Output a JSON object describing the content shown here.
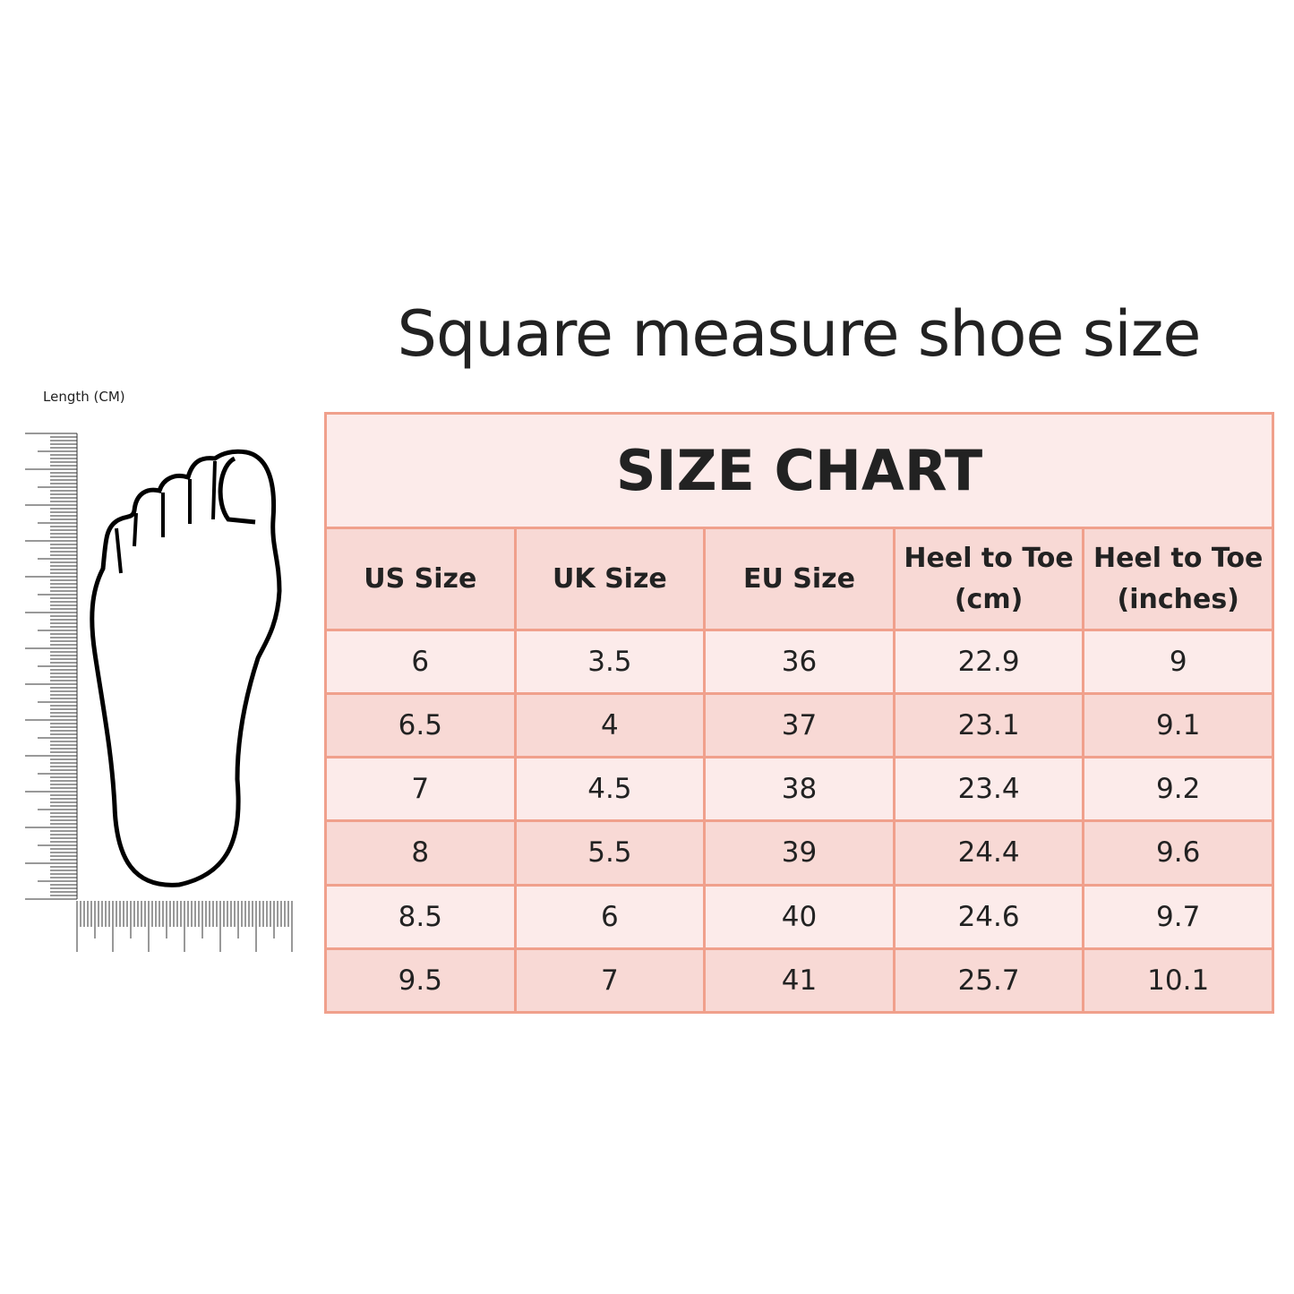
{
  "title": "Square measure shoe size",
  "ruler_label": "Length (CM)",
  "table": {
    "caption": "SIZE CHART",
    "headers": [
      "US Size",
      "UK Size",
      "EU Size",
      "Heel to Toe (cm)",
      "Heel to Toe (inches)"
    ],
    "rows": [
      [
        "6",
        "3.5",
        "36",
        "22.9",
        "9"
      ],
      [
        "6.5",
        "4",
        "37",
        "23.1",
        "9.1"
      ],
      [
        "7",
        "4.5",
        "38",
        "23.4",
        "9.2"
      ],
      [
        "8",
        "5.5",
        "39",
        "24.4",
        "9.6"
      ],
      [
        "8.5",
        "6",
        "40",
        "24.6",
        "9.7"
      ],
      [
        "9.5",
        "7",
        "41",
        "25.7",
        "10.1"
      ]
    ]
  },
  "colors": {
    "light_row": "#fcebea",
    "dark_row": "#f8d9d5",
    "border": "#f0a08c"
  },
  "icons": [
    "foot-outline-icon",
    "ruler-icon"
  ]
}
